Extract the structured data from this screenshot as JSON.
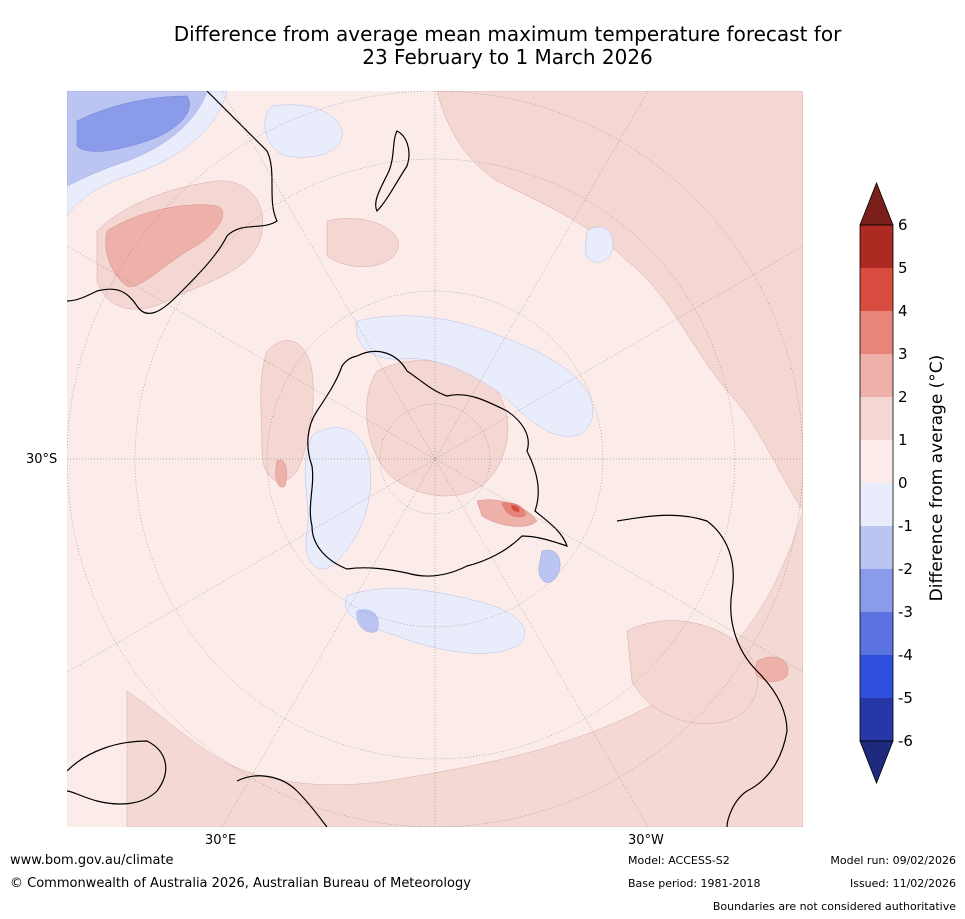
{
  "title": {
    "line1": "Difference from average mean maximum temperature forecast for",
    "line2": "23 February to 1 March 2026"
  },
  "map": {
    "projection": "south-polar-stereographic",
    "lat_label": "30°S",
    "lon_labels": [
      "30°E",
      "30°W"
    ],
    "features": [
      "Antarctica",
      "Australia",
      "New Zealand",
      "South America",
      "Africa",
      "Madagascar"
    ]
  },
  "colorbar": {
    "label": "Difference from average (°C)",
    "ticks": [
      "6",
      "5",
      "4",
      "3",
      "2",
      "1",
      "0",
      "-1",
      "-2",
      "-3",
      "-4",
      "-5",
      "-6"
    ],
    "colors": {
      "gt6": "#7a1f1a",
      "c5_6": "#ad2a22",
      "c4_5": "#d94d40",
      "c3_4": "#e8857a",
      "c2_3": "#edb1a9",
      "c1_2": "#f4d6d2",
      "c0_1": "#fbece9",
      "cm1_0": "#e9ecfb",
      "cm2_m1": "#bcc4f2",
      "cm3_m2": "#8a9bea",
      "cm4_m3": "#5a73e0",
      "cm5_m4": "#2f4fdd",
      "cm6_m5": "#2638a8",
      "lt_m6": "#1e2a7e"
    }
  },
  "footer": {
    "website": "www.bom.gov.au/climate",
    "copyright": "© Commonwealth of Australia 2026, Australian Bureau of Meteorology",
    "model": "Model: ACCESS-S2",
    "base_period": "Base period: 1981-2018",
    "model_run": "Model run: 09/02/2026",
    "issued": "Issued: 11/02/2026",
    "disclaimer": "Boundaries are not considered authoritative"
  }
}
